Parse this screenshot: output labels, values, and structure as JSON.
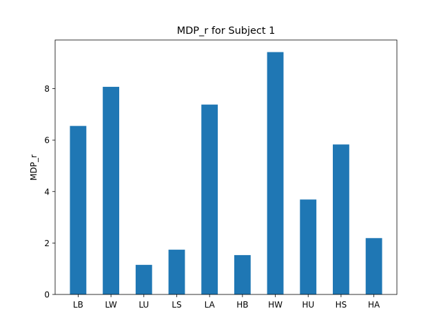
{
  "chart_data": {
    "type": "bar",
    "title": "MDP_r for Subject 1",
    "xlabel": "",
    "ylabel": "MDP_r",
    "categories": [
      "LB",
      "LW",
      "LU",
      "LS",
      "LA",
      "HB",
      "HW",
      "HU",
      "HS",
      "HA"
    ],
    "values": [
      6.55,
      8.07,
      1.15,
      1.74,
      7.38,
      1.53,
      9.42,
      3.69,
      5.83,
      2.19
    ],
    "ylim": [
      0,
      9.89
    ],
    "yticks": [
      0,
      2,
      4,
      6,
      8
    ],
    "bar_color": "#1f77b4",
    "grid": false,
    "legend": "none"
  }
}
